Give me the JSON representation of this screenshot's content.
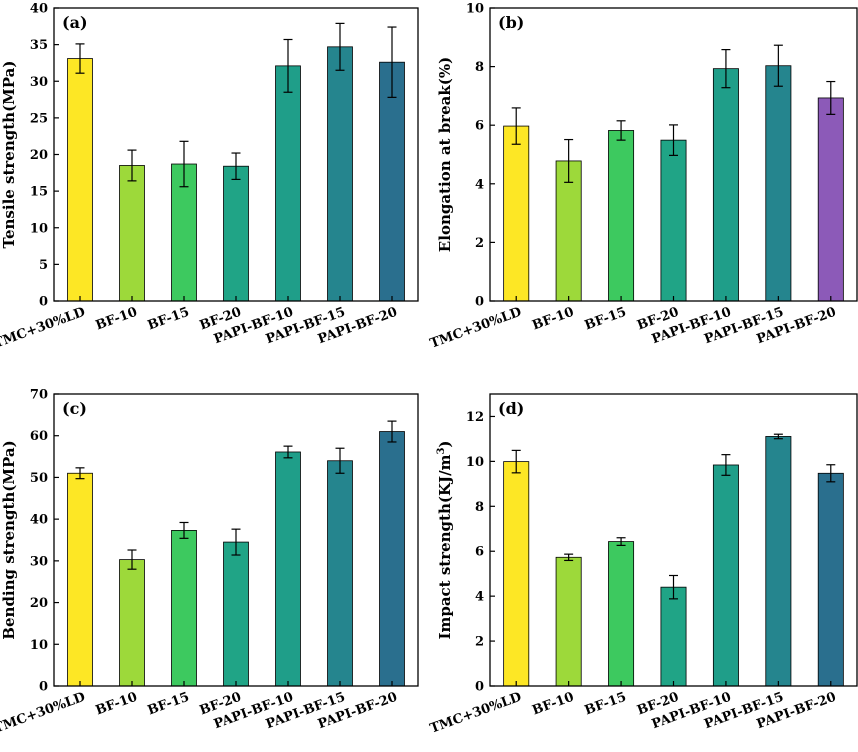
{
  "chart_data": [
    {
      "type": "bar",
      "panel_label": "(a)",
      "ylabel": "Tensile strength(MPa)",
      "ylabel_sup": "",
      "ylabel_suffix": "",
      "ylim": [
        0,
        40
      ],
      "yticks": [
        0,
        5,
        10,
        15,
        20,
        25,
        30,
        35,
        40
      ],
      "categories": [
        "TMC+30%LD",
        "BF-10",
        "BF-15",
        "BF-20",
        "PAPI-BF-10",
        "PAPI-BF-15",
        "PAPI-BF-20"
      ],
      "values": [
        33.1,
        18.5,
        18.7,
        18.4,
        32.1,
        34.7,
        32.6
      ],
      "errors": [
        2.0,
        2.1,
        3.1,
        1.8,
        3.6,
        3.2,
        4.8
      ],
      "colors": [
        "#fde725",
        "#9dd93a",
        "#3dc95f",
        "#20a486",
        "#1f9e89",
        "#25858e",
        "#2a6f8e"
      ]
    },
    {
      "type": "bar",
      "panel_label": "(b)",
      "ylabel": "Elongation at break(%)",
      "ylabel_sup": "",
      "ylabel_suffix": "",
      "ylim": [
        0,
        10
      ],
      "yticks": [
        0,
        2,
        4,
        6,
        8,
        10
      ],
      "categories": [
        "TMC+30%LD",
        "BF-10",
        "BF-15",
        "BF-20",
        "PAPI-BF-10",
        "PAPI-BF-15",
        "PAPI-BF-20"
      ],
      "values": [
        5.97,
        4.78,
        5.82,
        5.49,
        7.93,
        8.03,
        6.93
      ],
      "errors": [
        0.62,
        0.73,
        0.33,
        0.52,
        0.65,
        0.7,
        0.56
      ],
      "colors": [
        "#fde725",
        "#9dd93a",
        "#3dc95f",
        "#20a486",
        "#1f9e89",
        "#25858e",
        "#8c5ab8"
      ]
    },
    {
      "type": "bar",
      "panel_label": "(c)",
      "ylabel": "Bending strength(MPa)",
      "ylabel_sup": "",
      "ylabel_suffix": "",
      "ylim": [
        0,
        70
      ],
      "yticks": [
        0,
        10,
        20,
        30,
        40,
        50,
        60,
        70
      ],
      "categories": [
        "TMC+30%LD",
        "BF-10",
        "BF-15",
        "BF-20",
        "PAPI-BF-10",
        "PAPI-BF-15",
        "PAPI-BF-20"
      ],
      "values": [
        51.0,
        30.3,
        37.3,
        34.5,
        56.1,
        54.0,
        61.0
      ],
      "errors": [
        1.3,
        2.3,
        1.9,
        3.1,
        1.4,
        3.0,
        2.5
      ],
      "colors": [
        "#fde725",
        "#9dd93a",
        "#3dc95f",
        "#20a486",
        "#1f9e89",
        "#25858e",
        "#2a6f8e"
      ]
    },
    {
      "type": "bar",
      "panel_label": "(d)",
      "ylabel": "Impact strength(KJ/m",
      "ylabel_sup": "3",
      "ylabel_suffix": ")",
      "ylim": [
        0,
        13
      ],
      "yticks": [
        0,
        2,
        4,
        6,
        8,
        10,
        12
      ],
      "categories": [
        "TMC+30%LD",
        "BF-10",
        "BF-15",
        "BF-20",
        "PAPI-BF-10",
        "PAPI-BF-15",
        "PAPI-BF-20"
      ],
      "values": [
        9.99,
        5.73,
        6.43,
        4.4,
        9.84,
        11.11,
        9.47
      ],
      "errors": [
        0.5,
        0.14,
        0.17,
        0.52,
        0.46,
        0.1,
        0.38
      ],
      "colors": [
        "#fde725",
        "#9dd93a",
        "#3dc95f",
        "#20a486",
        "#1f9e89",
        "#25858e",
        "#2a6f8e"
      ]
    }
  ]
}
